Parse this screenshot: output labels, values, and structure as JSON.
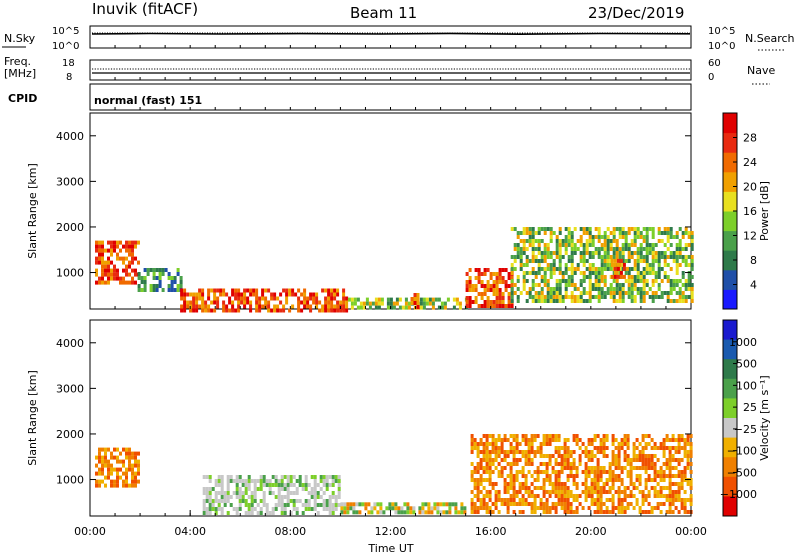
{
  "header": {
    "station": "Inuvik (fitACF)",
    "beam": "Beam 11",
    "date": "23/Dec/2019"
  },
  "panels": {
    "nsky": {
      "label": "N.Sky",
      "ticks": [
        "10^5",
        "10^0"
      ]
    },
    "nsearch": {
      "label": "N.Search",
      "ticks": [
        "10^5",
        "10^0"
      ],
      "style": "dotted"
    },
    "freq": {
      "label_line1": "Freq.",
      "label_line2": "[MHz]",
      "ticks": [
        "18",
        "8"
      ],
      "values_mhz": [
        8,
        18
      ]
    },
    "nave": {
      "label": "Nave",
      "ticks": [
        "60",
        "0"
      ],
      "style": "dotted"
    },
    "cpid": {
      "label": "CPID",
      "value": "normal (fast) 151"
    }
  },
  "chart_data": [
    {
      "type": "heatmap",
      "name": "power",
      "ylabel": "Slant Range [km]",
      "yticks": [
        "1000",
        "2000",
        "3000",
        "4000"
      ],
      "ylim": [
        200,
        4500
      ],
      "xlim_hours": [
        0,
        24
      ],
      "colorbar": {
        "label": "Power [dB]",
        "ticks": [
          "4",
          "8",
          "12",
          "16",
          "20",
          "24",
          "28"
        ],
        "colors": [
          "#1a1aff",
          "#1f4fa8",
          "#2e7a4a",
          "#4aa04a",
          "#7dcf2a",
          "#e8e020",
          "#f0a000",
          "#f06a00",
          "#e82a10",
          "#e00000"
        ]
      },
      "regions": [
        {
          "t0": 0.2,
          "t1": 1.9,
          "r0": 800,
          "r1": 1700,
          "level": "high"
        },
        {
          "t0": 1.9,
          "t1": 3.6,
          "r0": 600,
          "r1": 1100,
          "level": "low"
        },
        {
          "t0": 3.6,
          "t1": 10.3,
          "r0": 200,
          "r1": 650,
          "level": "high"
        },
        {
          "t0": 10.3,
          "t1": 15.0,
          "r0": 200,
          "r1": 450,
          "level": "mid"
        },
        {
          "t0": 12.8,
          "t1": 13.1,
          "r0": 200,
          "r1": 550,
          "level": "high"
        },
        {
          "t0": 15.0,
          "t1": 16.8,
          "r0": 250,
          "r1": 1100,
          "level": "high"
        },
        {
          "t0": 16.8,
          "t1": 24.0,
          "r0": 400,
          "r1": 2000,
          "level": "mid"
        },
        {
          "t0": 20.8,
          "t1": 21.4,
          "r0": 900,
          "r1": 1300,
          "level": "high"
        }
      ]
    },
    {
      "type": "heatmap",
      "name": "velocity",
      "ylabel": "Slant Range [km]",
      "yticks": [
        "1000",
        "2000",
        "3000",
        "4000"
      ],
      "ylim": [
        200,
        4500
      ],
      "xlim_hours": [
        0,
        24
      ],
      "xticks": [
        "00:00",
        "04:00",
        "08:00",
        "12:00",
        "16:00",
        "20:00",
        "00:00"
      ],
      "xlabel": "Time UT",
      "colorbar": {
        "label": "Velocity [m s⁻¹]",
        "ticks": [
          "1000",
          "500",
          "100",
          "25",
          "−25",
          "−100",
          "−500",
          "−1000"
        ],
        "colors": [
          "#1a1acf",
          "#1a5aaf",
          "#2e7a4a",
          "#4aa04a",
          "#7dcf2a",
          "#c8c8c8",
          "#f0b000",
          "#f08000",
          "#f05000",
          "#e00000"
        ]
      },
      "regions": [
        {
          "t0": 0.2,
          "t1": 1.9,
          "r0": 900,
          "r1": 1700,
          "level": "neg"
        },
        {
          "t0": 4.5,
          "t1": 10.0,
          "r0": 250,
          "r1": 1100,
          "level": "ground"
        },
        {
          "t0": 10.0,
          "t1": 15.0,
          "r0": 250,
          "r1": 500,
          "level": "mix"
        },
        {
          "t0": 15.2,
          "t1": 24.0,
          "r0": 300,
          "r1": 2000,
          "level": "neg"
        }
      ]
    }
  ]
}
